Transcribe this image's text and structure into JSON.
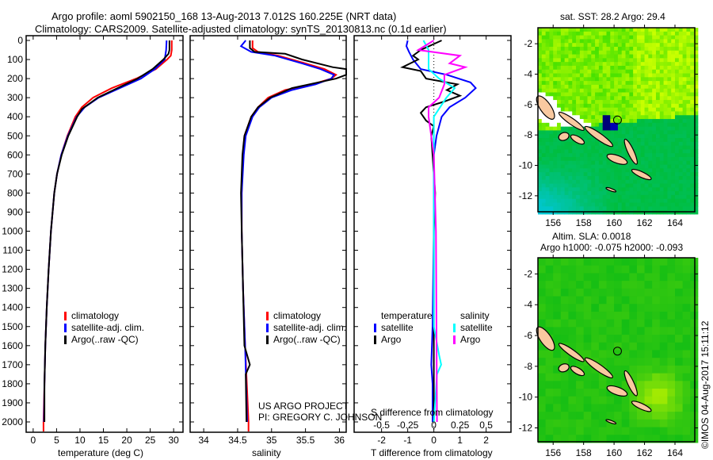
{
  "title_line1": "Argo profile: aoml 5902150_168 13-Aug-2013 7.012S 160.225E (NRT data)",
  "title_line2": "Climatology: CARS2009. Satellite-adjusted climatology: synTS_20130813.nc (0.1d earlier)",
  "credit": "©IMOS 04-Aug-2017 15:11:12",
  "project_line1": "US ARGO PROJECT",
  "project_line2": "PI: GREGORY C. JOHNSON",
  "colors": {
    "climatology": "#ff0000",
    "satellite": "#0000ff",
    "argo": "#000000",
    "sal_satellite": "#00ffff",
    "sal_argo": "#ff00ff"
  },
  "chart_data": [
    {
      "type": "line",
      "name": "temperature-profile",
      "xlabel": "temperature (deg C)",
      "ylabel": "depth",
      "xlim": [
        -1.5,
        32
      ],
      "ylim": [
        2050,
        0
      ],
      "xticks": [
        0,
        5,
        10,
        15,
        20,
        25,
        30
      ],
      "xtick_labels": [
        "0",
        "5",
        "10",
        "15",
        "20",
        "25",
        "30"
      ],
      "yticks": [
        0,
        100,
        200,
        300,
        400,
        500,
        600,
        700,
        800,
        900,
        1000,
        1100,
        1200,
        1300,
        1400,
        1500,
        1600,
        1700,
        1800,
        1900,
        2000
      ],
      "ytick_labels": [
        "0",
        "100",
        "200",
        "300",
        "400",
        "500",
        "600",
        "700",
        "800",
        "900",
        "1000",
        "1100",
        "1200",
        "1300",
        "1400",
        "1500",
        "1600",
        "1700",
        "1800",
        "1900",
        "2000"
      ],
      "legend": [
        "climatology",
        "satellite-adj. clim.",
        "Argo(..raw -QC)"
      ],
      "series": [
        {
          "name": "climatology",
          "color": "#ff0000",
          "depth": [
            0,
            50,
            80,
            100,
            150,
            200,
            250,
            300,
            350,
            400,
            500,
            600,
            700,
            800,
            1000,
            1200,
            1400,
            1600,
            1800,
            2000,
            2050
          ],
          "values": [
            29.6,
            29.6,
            29.4,
            28.6,
            26.2,
            22,
            16.8,
            12.8,
            10.4,
            9,
            7.3,
            6,
            5.1,
            4.5,
            3.8,
            3.3,
            2.9,
            2.6,
            2.4,
            2.2,
            2.2
          ]
        },
        {
          "name": "satellite-adj. clim.",
          "color": "#0000ff",
          "depth": [
            0,
            50,
            100,
            150,
            200,
            250,
            300,
            350,
            400,
            500,
            600,
            700,
            800,
            1000,
            1200,
            1400,
            1600,
            1800,
            2000
          ],
          "values": [
            28.5,
            28.4,
            28.1,
            26,
            23,
            18.5,
            14,
            11,
            9.3,
            7.4,
            6,
            5.1,
            4.5,
            3.8,
            3.3,
            2.9,
            2.6,
            2.4,
            2.3
          ]
        },
        {
          "name": "Argo(..raw -QC)",
          "color": "#000000",
          "depth": [
            0,
            50,
            70,
            100,
            150,
            200,
            250,
            300,
            360,
            400,
            500,
            600,
            700,
            800,
            1000,
            1200,
            1400,
            1600,
            1800,
            2000
          ],
          "values": [
            29.1,
            29.1,
            28.9,
            27.8,
            25.5,
            22.3,
            18,
            13.8,
            10.4,
            9.4,
            7.5,
            6.1,
            5.1,
            4.5,
            3.8,
            3.3,
            2.9,
            2.6,
            2.4,
            2.4
          ]
        }
      ]
    },
    {
      "type": "line",
      "name": "salinity-profile",
      "xlabel": "salinity",
      "ylabel": "depth",
      "xlim": [
        33.8,
        36.1
      ],
      "ylim": [
        2050,
        0
      ],
      "xticks": [
        34,
        34.5,
        35,
        35.5,
        36
      ],
      "xtick_labels": [
        "34",
        "34.5",
        "35",
        "35.5",
        "36"
      ],
      "legend": [
        "climatology",
        "satellite-adj. clim.",
        "Argo(..raw -QC)"
      ],
      "series": [
        {
          "name": "climatology",
          "color": "#ff0000",
          "depth": [
            0,
            40,
            60,
            80,
            120,
            150,
            180,
            200,
            230,
            260,
            300,
            350,
            400,
            500,
            600,
            800,
            1000,
            1300,
            1600,
            2000,
            2050
          ],
          "values": [
            34.72,
            34.72,
            34.8,
            35.1,
            35.5,
            35.78,
            35.95,
            35.88,
            35.6,
            35.2,
            34.95,
            34.8,
            34.7,
            34.6,
            34.58,
            34.56,
            34.56,
            34.58,
            34.61,
            34.66,
            34.66
          ]
        },
        {
          "name": "satellite-adj. clim.",
          "color": "#0000ff",
          "depth": [
            0,
            30,
            60,
            80,
            120,
            150,
            180,
            200,
            230,
            260,
            300,
            350,
            400,
            500,
            600,
            800,
            1000,
            1300,
            1600,
            2000
          ],
          "values": [
            34.62,
            34.55,
            34.7,
            35.05,
            35.45,
            35.72,
            35.92,
            35.88,
            35.65,
            35.3,
            35.0,
            34.82,
            34.72,
            34.62,
            34.59,
            34.56,
            34.56,
            34.58,
            34.61,
            34.64
          ]
        },
        {
          "name": "Argo(..raw -QC)",
          "color": "#000000",
          "depth": [
            0,
            40,
            60,
            70,
            100,
            140,
            150,
            170,
            180,
            200,
            250,
            300,
            350,
            400,
            500,
            600,
            800,
            1000,
            1300,
            1600,
            1700,
            1750,
            2000
          ],
          "values": [
            34.68,
            34.68,
            34.75,
            35.2,
            35.45,
            35.9,
            36.1,
            36.1,
            36.1,
            35.95,
            35.3,
            34.98,
            34.8,
            34.7,
            34.6,
            34.57,
            34.55,
            34.56,
            34.58,
            34.6,
            34.68,
            34.62,
            34.63
          ]
        }
      ]
    },
    {
      "type": "line",
      "name": "difference-profile",
      "xlabel": "T difference from climatology",
      "xlabel2": "S difference from climatology",
      "ylabel": "depth",
      "xlim": [
        -3.05,
        2.95
      ],
      "ylim": [
        2050,
        0
      ],
      "xticks": [
        -2,
        -1,
        0,
        1,
        2
      ],
      "xtick_labels": [
        "-2",
        "-1",
        "0",
        "1",
        "2"
      ],
      "s_xticks": [
        -0.5,
        -0.25,
        0,
        0.25,
        0.5
      ],
      "s_xtick_labels": [
        "-0.5",
        "-0.25",
        "0",
        "0.25",
        "0.5"
      ],
      "legend_headers": [
        "temperature",
        "salinity"
      ],
      "legend": [
        "satellite",
        "Argo",
        "satellite",
        "Argo"
      ],
      "series": [
        {
          "name": "T satellite",
          "color": "#0000ff",
          "unit": "T",
          "depth": [
            0,
            30,
            60,
            100,
            150,
            180,
            220,
            250,
            300,
            350,
            400,
            500,
            600,
            1000,
            1500,
            1700,
            1800,
            2000
          ],
          "values": [
            -1.0,
            -1.05,
            -0.95,
            -0.8,
            -0.5,
            0.5,
            1.4,
            1.6,
            1.2,
            0.6,
            0.3,
            0.1,
            0,
            0,
            -0.05,
            -0.1,
            -0.05,
            -0.05
          ]
        },
        {
          "name": "T Argo",
          "color": "#000000",
          "unit": "T",
          "depth": [
            0,
            50,
            80,
            100,
            140,
            160,
            200,
            230,
            260,
            290,
            320,
            350,
            380,
            420,
            450,
            500,
            700,
            800,
            1000,
            2000
          ],
          "values": [
            0.3,
            -0.5,
            -0.8,
            -0.6,
            -1.2,
            -0.5,
            -0.3,
            0.9,
            0.5,
            1.0,
            0.4,
            -0.3,
            -0.5,
            -0.3,
            0,
            -0.1,
            0,
            0.05,
            0,
            0
          ]
        },
        {
          "name": "S satellite",
          "color": "#00ffff",
          "unit": "S",
          "depth": [
            0,
            50,
            100,
            150,
            200,
            250,
            300,
            400,
            600,
            1500,
            1650,
            1700,
            1750,
            2000
          ],
          "values": [
            -0.1,
            -0.05,
            -0.05,
            -0.05,
            0.05,
            0.2,
            0.12,
            0,
            0,
            0,
            0.05,
            0.07,
            0.03,
            0
          ]
        },
        {
          "name": "S Argo",
          "color": "#ff00ff",
          "unit": "S",
          "depth": [
            0,
            50,
            80,
            120,
            140,
            180,
            230,
            300,
            350,
            400,
            600,
            1000,
            2000
          ],
          "values": [
            0,
            -0.15,
            0.25,
            0.15,
            0.3,
            0.1,
            0.1,
            0.05,
            -0.05,
            -0.05,
            0,
            0.02,
            0.03
          ]
        }
      ]
    },
    {
      "type": "heatmap",
      "name": "sst-map",
      "title": "sat. SST: 28.2 Argo: 29.4",
      "xlim": [
        155,
        165.3
      ],
      "ylim": [
        -13.05,
        -0.95
      ],
      "xticks": [
        156,
        158,
        160,
        162,
        164
      ],
      "xtick_labels": [
        "156",
        "158",
        "160",
        "162",
        "164"
      ],
      "yticks": [
        -2,
        -4,
        -6,
        -8,
        -10,
        -12
      ],
      "ytick_labels": [
        "-2",
        "-4",
        "-6",
        "-8",
        "-10",
        "-12"
      ],
      "argo_position": {
        "lon": 160.225,
        "lat": -7.012
      }
    },
    {
      "type": "heatmap",
      "name": "sla-map",
      "title": "Altim. SLA: 0.0018",
      "subtitle": "Argo h1000: -0.075 h2000: -0.093",
      "xlim": [
        155,
        165.3
      ],
      "ylim": [
        -12.9,
        -0.95
      ],
      "xticks": [
        156,
        158,
        160,
        162,
        164
      ],
      "xtick_labels": [
        "156",
        "158",
        "160",
        "162",
        "164"
      ],
      "yticks": [
        -2,
        -4,
        -6,
        -8,
        -10,
        -12
      ],
      "ytick_labels": [
        "-2",
        "-4",
        "-6",
        "-8",
        "-10",
        "-12"
      ],
      "argo_position": {
        "lon": 160.225,
        "lat": -7.012
      }
    }
  ]
}
